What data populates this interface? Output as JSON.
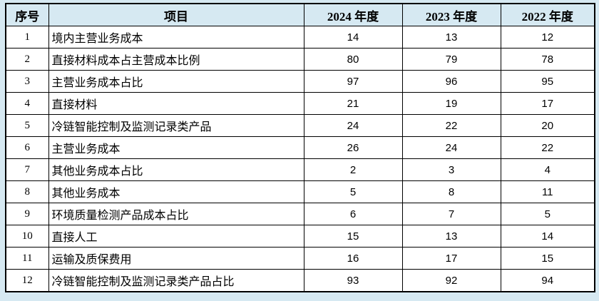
{
  "page": {
    "background_color": "#d6e9f2",
    "grid_color": "#000000",
    "row_background": "#ffffff"
  },
  "table": {
    "headers": [
      "序号",
      "项目",
      "2024 年度",
      "2023 年度",
      "2022 年度"
    ],
    "rows": [
      {
        "no": "1",
        "item": "境内主营业务成本",
        "y2024": "14",
        "y2023": "13",
        "y2022": "12"
      },
      {
        "no": "2",
        "item": "直接材料成本占主营成本比例",
        "y2024": "80",
        "y2023": "79",
        "y2022": "78"
      },
      {
        "no": "3",
        "item": "主营业务成本占比",
        "y2024": "97",
        "y2023": "96",
        "y2022": "95"
      },
      {
        "no": "4",
        "item": "直接材料",
        "y2024": "21",
        "y2023": "19",
        "y2022": "17"
      },
      {
        "no": "5",
        "item": "冷链智能控制及监测记录类产品",
        "y2024": "24",
        "y2023": "22",
        "y2022": "20"
      },
      {
        "no": "6",
        "item": "主营业务成本",
        "y2024": "26",
        "y2023": "24",
        "y2022": "22"
      },
      {
        "no": "7",
        "item": "其他业务成本占比",
        "y2024": "2",
        "y2023": "3",
        "y2022": "4"
      },
      {
        "no": "8",
        "item": "其他业务成本",
        "y2024": "5",
        "y2023": "8",
        "y2022": "11"
      },
      {
        "no": "9",
        "item": "环境质量检测产品成本占比",
        "y2024": "6",
        "y2023": "7",
        "y2022": "5"
      },
      {
        "no": "10",
        "item": "直接人工",
        "y2024": "15",
        "y2023": "13",
        "y2022": "14"
      },
      {
        "no": "11",
        "item": "运输及质保费用",
        "y2024": "16",
        "y2023": "17",
        "y2022": "15"
      },
      {
        "no": "12",
        "item": "冷链智能控制及监测记录类产品占比",
        "y2024": "93",
        "y2023": "92",
        "y2022": "94"
      }
    ]
  }
}
